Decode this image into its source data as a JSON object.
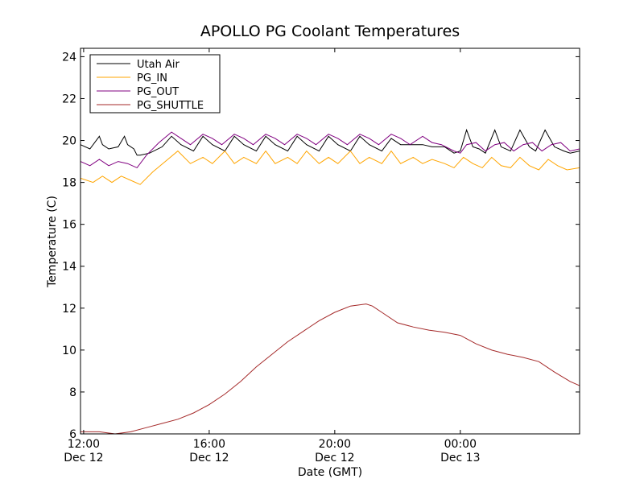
{
  "chart_data": {
    "type": "line",
    "title": "APOLLO PG Coolant Temperatures",
    "xlabel": "Date (GMT)",
    "ylabel": "Temperature (C)",
    "xlim": [
      11.9,
      27.8
    ],
    "ylim": [
      6,
      24.4
    ],
    "grid": false,
    "legend_position": "top-left",
    "x_unit": "hours since 2012-12-12 00:00 GMT",
    "yticks": [
      {
        "value": 6,
        "label": "6"
      },
      {
        "value": 8,
        "label": "8"
      },
      {
        "value": 10,
        "label": "10"
      },
      {
        "value": 12,
        "label": "12"
      },
      {
        "value": 14,
        "label": "14"
      },
      {
        "value": 16,
        "label": "16"
      },
      {
        "value": 18,
        "label": "18"
      },
      {
        "value": 20,
        "label": "20"
      },
      {
        "value": 22,
        "label": "22"
      },
      {
        "value": 24,
        "label": "24"
      }
    ],
    "xticks": [
      {
        "value": 12,
        "time": "12:00",
        "date": "Dec 12"
      },
      {
        "value": 16,
        "time": "16:00",
        "date": "Dec 12"
      },
      {
        "value": 20,
        "time": "20:00",
        "date": "Dec 12"
      },
      {
        "value": 24,
        "time": "00:00",
        "date": "Dec 13"
      }
    ],
    "series": [
      {
        "name": "Utah Air",
        "color": "#000000",
        "x": [
          11.9,
          12.2,
          12.5,
          12.6,
          12.8,
          13.1,
          13.3,
          13.4,
          13.6,
          13.7,
          13.8,
          14.1,
          14.5,
          14.8,
          15.1,
          15.5,
          15.8,
          16.1,
          16.5,
          16.8,
          17.1,
          17.5,
          17.8,
          18.1,
          18.5,
          18.8,
          19.1,
          19.5,
          19.8,
          20.1,
          20.5,
          20.8,
          21.1,
          21.5,
          21.8,
          22.1,
          22.5,
          22.8,
          23.1,
          23.5,
          23.8,
          24.0,
          24.2,
          24.4,
          24.6,
          24.8,
          25.1,
          25.3,
          25.6,
          25.9,
          26.2,
          26.4,
          26.7,
          27.0,
          27.3,
          27.5,
          27.8
        ],
        "y": [
          19.8,
          19.6,
          20.2,
          19.8,
          19.6,
          19.7,
          20.2,
          19.8,
          19.6,
          19.3,
          19.3,
          19.4,
          19.7,
          20.2,
          19.8,
          19.5,
          20.2,
          19.8,
          19.5,
          20.2,
          19.8,
          19.5,
          20.2,
          19.8,
          19.5,
          20.2,
          19.8,
          19.5,
          20.2,
          19.8,
          19.5,
          20.2,
          19.8,
          19.5,
          20.1,
          19.8,
          19.8,
          19.8,
          19.7,
          19.7,
          19.4,
          19.5,
          20.5,
          19.7,
          19.6,
          19.4,
          20.5,
          19.7,
          19.5,
          20.5,
          19.7,
          19.5,
          20.5,
          19.7,
          19.5,
          19.4,
          19.5
        ]
      },
      {
        "name": "PG_IN",
        "color": "#ffa500",
        "x": [
          11.9,
          12.3,
          12.6,
          12.9,
          13.2,
          13.5,
          13.8,
          14.2,
          14.6,
          15.0,
          15.4,
          15.8,
          16.1,
          16.5,
          16.8,
          17.1,
          17.5,
          17.8,
          18.1,
          18.5,
          18.8,
          19.1,
          19.5,
          19.8,
          20.1,
          20.5,
          20.8,
          21.1,
          21.5,
          21.8,
          22.1,
          22.5,
          22.8,
          23.1,
          23.5,
          23.8,
          24.1,
          24.4,
          24.7,
          25.0,
          25.3,
          25.6,
          25.9,
          26.2,
          26.5,
          26.8,
          27.1,
          27.4,
          27.8
        ],
        "y": [
          18.2,
          18.0,
          18.3,
          18.0,
          18.3,
          18.1,
          17.9,
          18.5,
          19.0,
          19.5,
          18.9,
          19.2,
          18.9,
          19.5,
          18.9,
          19.2,
          18.9,
          19.5,
          18.9,
          19.2,
          18.9,
          19.5,
          18.9,
          19.2,
          18.9,
          19.5,
          18.9,
          19.2,
          18.9,
          19.5,
          18.9,
          19.2,
          18.9,
          19.1,
          18.9,
          18.7,
          19.2,
          18.9,
          18.7,
          19.2,
          18.8,
          18.7,
          19.2,
          18.8,
          18.6,
          19.1,
          18.8,
          18.6,
          18.7
        ]
      },
      {
        "name": "PG_OUT",
        "color": "#800080",
        "x": [
          11.9,
          12.2,
          12.5,
          12.8,
          13.1,
          13.4,
          13.7,
          14.0,
          14.4,
          14.8,
          15.1,
          15.4,
          15.8,
          16.1,
          16.4,
          16.8,
          17.1,
          17.4,
          17.8,
          18.1,
          18.4,
          18.8,
          19.1,
          19.4,
          19.8,
          20.1,
          20.4,
          20.8,
          21.1,
          21.4,
          21.8,
          22.1,
          22.4,
          22.8,
          23.1,
          23.4,
          23.8,
          24.0,
          24.2,
          24.5,
          24.8,
          25.1,
          25.4,
          25.7,
          26.0,
          26.3,
          26.6,
          26.9,
          27.2,
          27.5,
          27.8
        ],
        "y": [
          19.0,
          18.8,
          19.1,
          18.8,
          19.0,
          18.9,
          18.7,
          19.3,
          19.9,
          20.4,
          20.1,
          19.8,
          20.3,
          20.1,
          19.8,
          20.3,
          20.1,
          19.8,
          20.3,
          20.1,
          19.8,
          20.3,
          20.1,
          19.8,
          20.3,
          20.1,
          19.8,
          20.3,
          20.1,
          19.8,
          20.3,
          20.1,
          19.8,
          20.2,
          19.9,
          19.8,
          19.5,
          19.4,
          19.8,
          19.9,
          19.5,
          19.8,
          19.9,
          19.5,
          19.8,
          19.9,
          19.5,
          19.8,
          19.9,
          19.5,
          19.6
        ]
      },
      {
        "name": "PG_SHUTTLE",
        "color": "#a52a2a",
        "x": [
          11.9,
          12.5,
          13.0,
          13.5,
          14.0,
          14.5,
          15.0,
          15.5,
          16.0,
          16.5,
          17.0,
          17.5,
          18.0,
          18.5,
          19.0,
          19.5,
          20.0,
          20.5,
          21.0,
          21.2,
          21.5,
          22.0,
          22.5,
          23.0,
          23.5,
          24.0,
          24.5,
          25.0,
          25.5,
          26.0,
          26.5,
          27.0,
          27.5,
          27.8
        ],
        "y": [
          6.1,
          6.1,
          6.0,
          6.1,
          6.3,
          6.5,
          6.7,
          7.0,
          7.4,
          7.9,
          8.5,
          9.2,
          9.8,
          10.4,
          10.9,
          11.4,
          11.8,
          12.1,
          12.2,
          12.1,
          11.8,
          11.3,
          11.1,
          10.95,
          10.85,
          10.7,
          10.3,
          10.0,
          9.8,
          9.65,
          9.45,
          8.95,
          8.5,
          8.3
        ]
      }
    ]
  }
}
